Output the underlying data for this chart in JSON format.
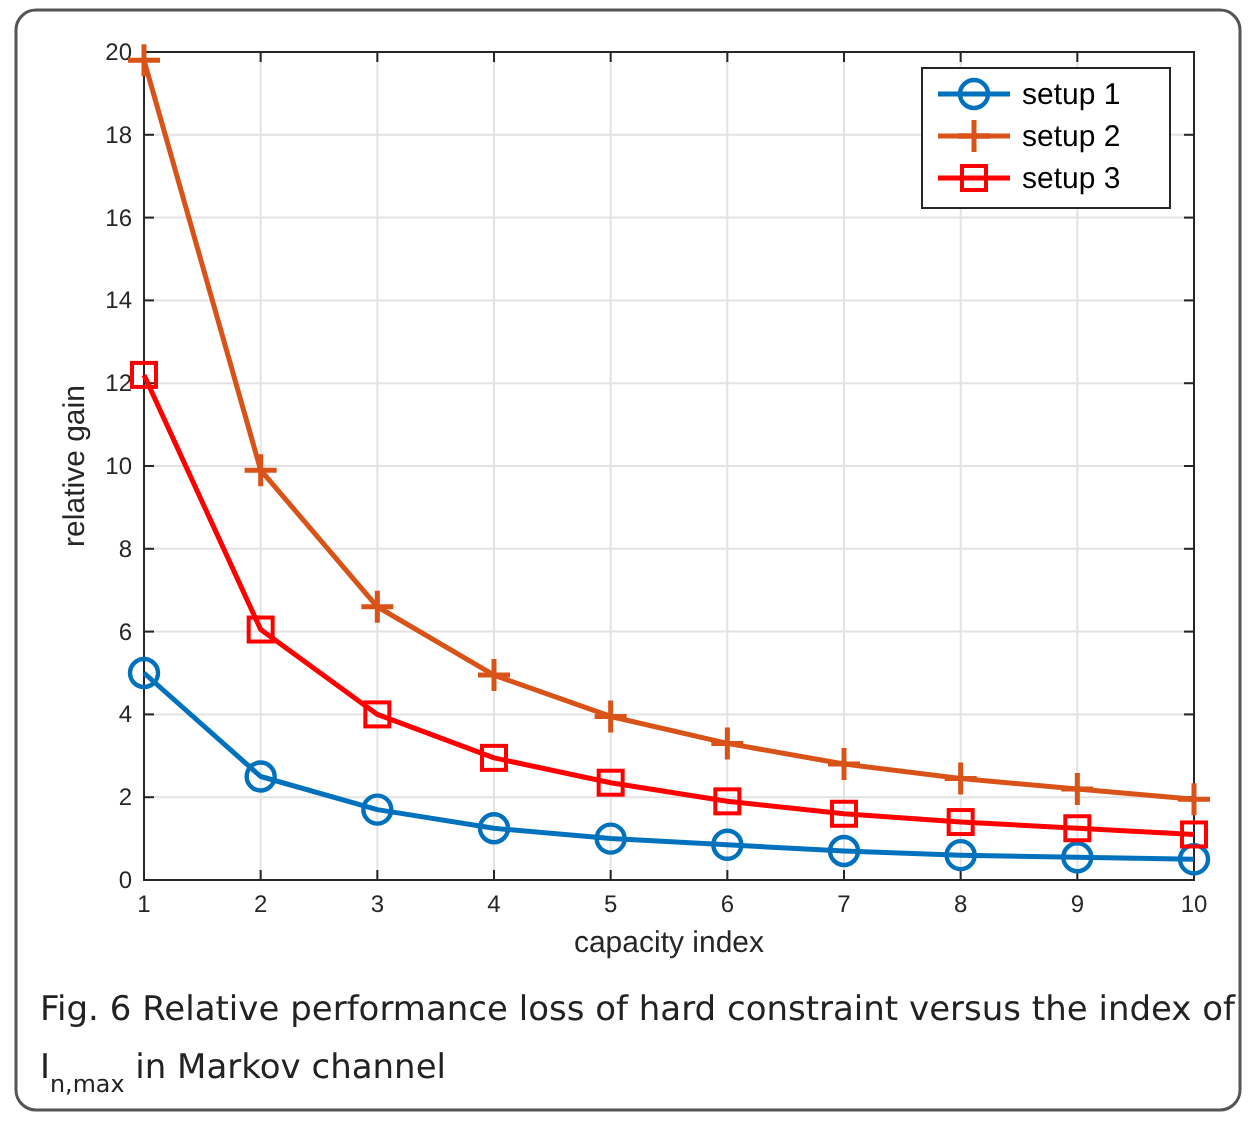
{
  "chart_data": {
    "type": "line",
    "xlabel": "capacity index",
    "ylabel": "relative gain",
    "x": [
      1,
      2,
      3,
      4,
      5,
      6,
      7,
      8,
      9,
      10
    ],
    "series": [
      {
        "name": "setup 1",
        "color": "#0072bd",
        "marker": "circle",
        "values": [
          5.0,
          2.5,
          1.7,
          1.25,
          1.0,
          0.85,
          0.7,
          0.6,
          0.55,
          0.5
        ]
      },
      {
        "name": "setup 2",
        "color": "#d95319",
        "marker": "cross",
        "values": [
          19.8,
          9.9,
          6.6,
          4.95,
          3.95,
          3.3,
          2.8,
          2.45,
          2.2,
          1.95
        ]
      },
      {
        "name": "setup 3",
        "color": "#ff0000",
        "marker": "square",
        "values": [
          12.2,
          6.05,
          4.0,
          2.95,
          2.35,
          1.9,
          1.6,
          1.4,
          1.25,
          1.1
        ]
      }
    ],
    "xlim": [
      1,
      10
    ],
    "xticks": [
      1,
      2,
      3,
      4,
      5,
      6,
      7,
      8,
      9,
      10
    ],
    "ylim": [
      0,
      20
    ],
    "yticks": [
      0,
      2,
      4,
      6,
      8,
      10,
      12,
      14,
      16,
      18,
      20
    ],
    "grid": true,
    "legend": "top right",
    "line_style": "solid",
    "annotations": [
      "Fig. 6 Relative performance loss of hard constraint versus the index of I$_{n,max}$ in Markov channel"
    ]
  }
}
